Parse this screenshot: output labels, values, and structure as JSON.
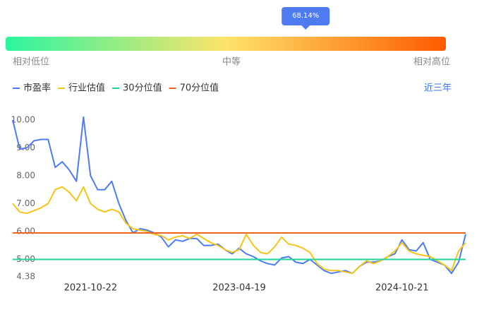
{
  "chart_data": {
    "type": "line",
    "gauge": {
      "value": 68.14,
      "value_label": "68.14%",
      "lim": [
        0,
        100
      ],
      "labels": [
        "相对低位",
        "中等",
        "相对高位"
      ]
    },
    "period": "近三年",
    "categories": [
      null,
      null,
      null,
      null,
      null,
      null,
      null,
      null,
      null,
      null,
      null,
      "2021-10-22",
      null,
      null,
      null,
      null,
      null,
      null,
      null,
      null,
      null,
      null,
      null,
      null,
      null,
      null,
      null,
      null,
      null,
      null,
      null,
      null,
      "2023-04-19",
      null,
      null,
      null,
      null,
      null,
      null,
      null,
      null,
      null,
      null,
      null,
      null,
      null,
      null,
      null,
      null,
      null,
      null,
      null,
      null,
      null,
      null,
      "2024-10-21",
      null,
      null,
      null,
      null,
      null,
      null,
      null,
      null,
      null
    ],
    "series": [
      {
        "name": "市盈率",
        "color": "#4e7cf0",
        "values": [
          10.0,
          8.95,
          9.0,
          9.25,
          9.3,
          9.3,
          8.3,
          8.5,
          8.2,
          7.8,
          10.1,
          8.0,
          7.5,
          7.5,
          7.8,
          7.0,
          6.4,
          5.95,
          6.1,
          6.05,
          5.95,
          5.8,
          5.45,
          5.7,
          5.65,
          5.75,
          5.75,
          5.5,
          5.5,
          5.55,
          5.35,
          5.2,
          5.4,
          5.2,
          5.1,
          4.95,
          4.85,
          4.8,
          5.05,
          5.1,
          4.9,
          4.85,
          5.0,
          4.8,
          4.6,
          4.5,
          4.55,
          4.6,
          4.5,
          4.75,
          4.9,
          4.9,
          4.95,
          5.1,
          5.2,
          5.7,
          5.35,
          5.3,
          5.6,
          5.0,
          4.9,
          4.8,
          4.5,
          4.9,
          5.9
        ]
      },
      {
        "name": "行业估值",
        "color": "#f5c518",
        "values": [
          7.0,
          6.7,
          6.65,
          6.75,
          6.85,
          7.0,
          7.5,
          7.6,
          7.4,
          7.1,
          7.6,
          7.0,
          6.8,
          6.7,
          6.8,
          6.7,
          6.3,
          6.1,
          6.05,
          6.0,
          5.9,
          5.85,
          5.7,
          5.8,
          5.85,
          5.75,
          5.9,
          5.75,
          5.6,
          5.5,
          5.35,
          5.25,
          5.35,
          5.9,
          5.5,
          5.25,
          5.2,
          5.45,
          5.8,
          5.55,
          5.5,
          5.4,
          5.25,
          4.85,
          4.65,
          4.6,
          4.6,
          4.55,
          4.5,
          4.75,
          4.95,
          4.85,
          4.95,
          5.1,
          5.3,
          5.6,
          5.3,
          5.2,
          5.15,
          5.1,
          4.95,
          4.8,
          4.6,
          5.3,
          5.6
        ]
      }
    ],
    "reference_lines": [
      {
        "name": "30分位值",
        "color": "#1fd69a",
        "value": 5.0
      },
      {
        "name": "70分位值",
        "color": "#f0621e",
        "value": 5.95
      }
    ],
    "ylim": [
      4.38,
      10.25
    ],
    "yticks": [
      4.38,
      {
        "value": 5,
        "label": "5.00"
      },
      {
        "value": 6,
        "label": "6.00"
      },
      {
        "value": 7,
        "label": "7.00"
      },
      {
        "value": 8,
        "label": "8.00"
      },
      {
        "value": 9,
        "label": "9.00"
      },
      {
        "value": 10,
        "label": "10.00"
      }
    ]
  }
}
